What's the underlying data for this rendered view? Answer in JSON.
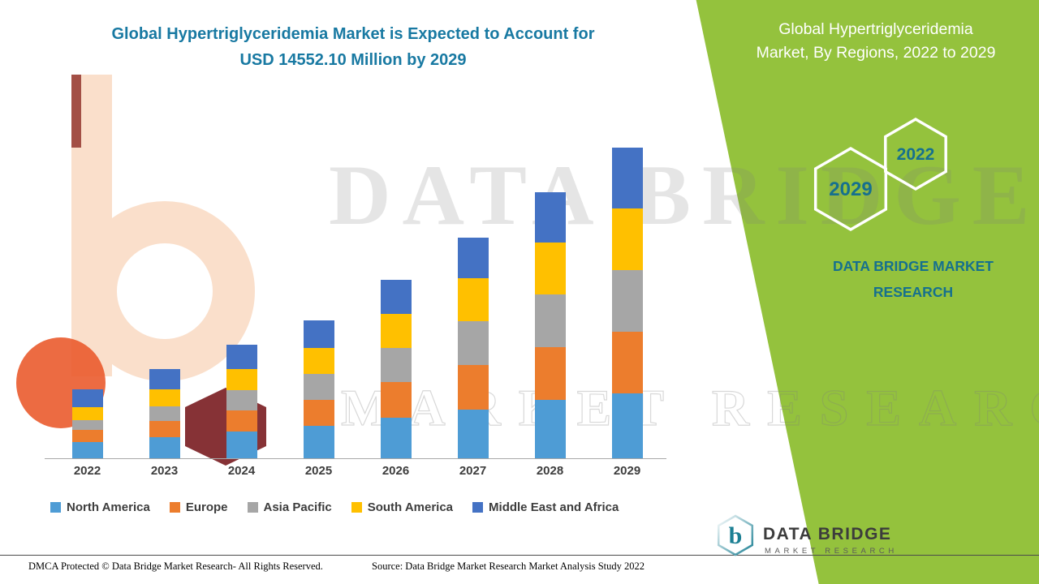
{
  "header": {
    "title_lines": [
      "Global Hypertriglyceridemia Market is Expected to Account for",
      "USD 14552.10 Million by 2029"
    ],
    "title_color": "#1879A2"
  },
  "right_panel": {
    "background_color": "#94C23D",
    "title_lines": [
      "Global Hypertriglyceridemia",
      "Market, By Regions, 2022 to 2029"
    ],
    "badge_2029": "2029",
    "badge_2022": "2022",
    "brand_lines": [
      "DATA BRIDGE MARKET",
      "RESEARCH"
    ],
    "brand_color": "#16708E"
  },
  "watermark": {
    "line1": "DATA BRIDGE",
    "line2": "MARKET RESEARCH"
  },
  "chart_data": {
    "type": "bar",
    "stacked": true,
    "title": "Global Hypertriglyceridemia Market, By Regions, 2022 to 2029",
    "unit": "USD Million",
    "categories": [
      "2022",
      "2023",
      "2024",
      "2025",
      "2026",
      "2027",
      "2028",
      "2029"
    ],
    "series": [
      {
        "name": "North America",
        "color": "#4E9CD5",
        "values": [
          760,
          988,
          1254,
          1520,
          1900,
          2280,
          2736,
          3040
        ]
      },
      {
        "name": "Europe",
        "color": "#EC7D2D",
        "values": [
          570,
          760,
          988,
          1216,
          1672,
          2090,
          2470,
          2888
        ]
      },
      {
        "name": "Asia Pacific",
        "color": "#A6A6A6",
        "values": [
          456,
          684,
          950,
          1216,
          1596,
          2052,
          2470,
          2888
        ]
      },
      {
        "name": "South America",
        "color": "#FFC000",
        "values": [
          608,
          798,
          988,
          1216,
          1596,
          2014,
          2432,
          2888
        ]
      },
      {
        "name": "Middle East and Africa",
        "color": "#4472C4",
        "values": [
          836,
          950,
          1140,
          1292,
          1596,
          1900,
          2356,
          2848.1
        ]
      }
    ],
    "totals": [
      3230,
      4180,
      5320,
      6460,
      8360,
      10336,
      12464,
      14552.1
    ],
    "ylim": [
      0,
      15000
    ],
    "grid": false,
    "legend_position": "bottom",
    "xlabel": "",
    "ylabel": ""
  },
  "footer": {
    "dmca": "DMCA Protected © Data Bridge Market Research- All Rights Reserved.",
    "source": "Source: Data Bridge Market Research Market Analysis Study 2022"
  },
  "logo": {
    "letter": "b",
    "name": "DATA BRIDGE",
    "sub": "MARKET RESEARCH"
  }
}
